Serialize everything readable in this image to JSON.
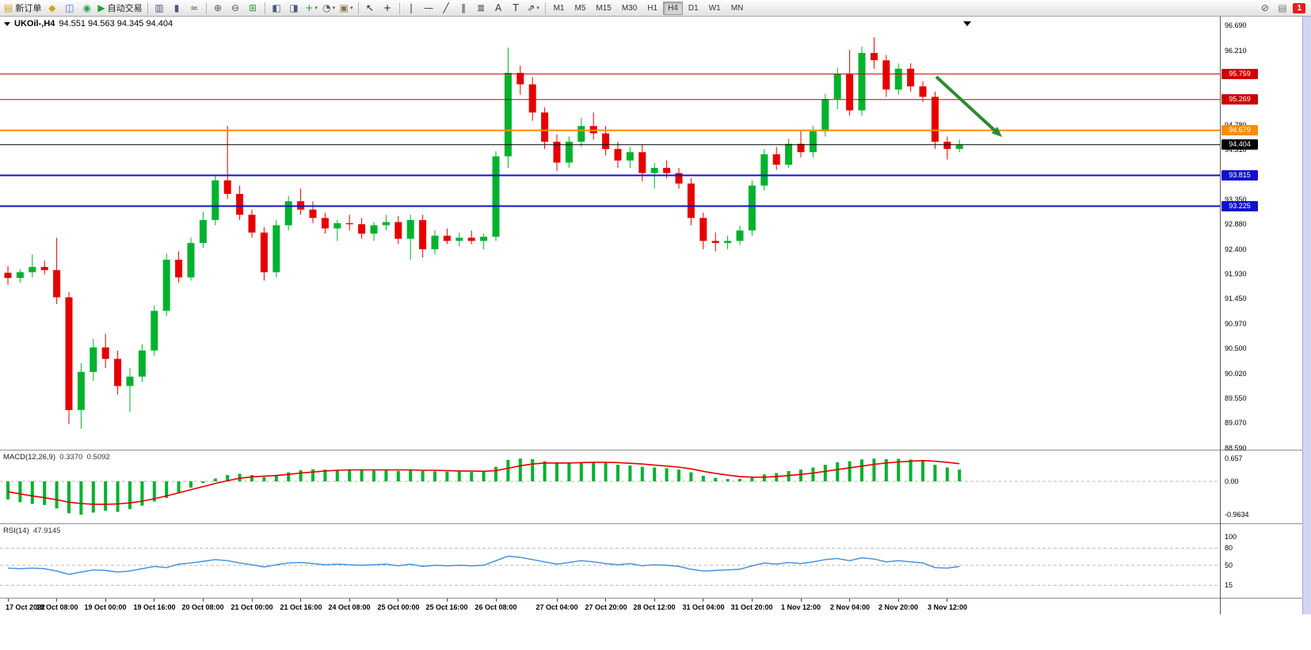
{
  "toolbar": {
    "timeframes": {
      "options": [
        "M1",
        "M5",
        "M15",
        "M30",
        "H1",
        "H4",
        "D1",
        "W1",
        "MN"
      ],
      "active": "H4"
    },
    "items": [
      {
        "type": "button",
        "name": "new-order-button",
        "glyph": "▤",
        "glyph_color": "#caa328",
        "label": "新订单"
      },
      {
        "type": "button",
        "name": "alerts-button",
        "glyph": "◆",
        "glyph_color": "#d7a021"
      },
      {
        "type": "button",
        "name": "market-watch-button",
        "glyph": "◫",
        "glyph_color": "#3e6fd0"
      },
      {
        "type": "button",
        "name": "community-button",
        "glyph": "◉",
        "glyph_color": "#31a24c"
      },
      {
        "type": "button",
        "name": "autotrading-button",
        "glyph": "▶",
        "glyph_color": "#1fa32a",
        "label": "自动交易"
      },
      {
        "type": "separator"
      },
      {
        "type": "button",
        "name": "bar-chart-button",
        "glyph": "▥",
        "glyph_color": "#4a5a80"
      },
      {
        "type": "button",
        "name": "candlestick-chart-button",
        "glyph": "▮",
        "glyph_color": "#4a5a80"
      },
      {
        "type": "button",
        "name": "line-chart-button",
        "glyph": "≈",
        "glyph_color": "#4a5a80"
      },
      {
        "type": "separator"
      },
      {
        "type": "button",
        "name": "zoom-in-button",
        "glyph": "⊕",
        "glyph_color": "#555555"
      },
      {
        "type": "button",
        "name": "zoom-out-button",
        "glyph": "⊖",
        "glyph_color": "#555555"
      },
      {
        "type": "button",
        "name": "tile-windows-button",
        "glyph": "⊞",
        "glyph_color": "#2f9e38"
      },
      {
        "type": "separator"
      },
      {
        "type": "button",
        "name": "auto-scroll-button",
        "glyph": "◧",
        "glyph_color": "#4a5a80"
      },
      {
        "type": "button",
        "name": "chart-shift-button",
        "glyph": "◨",
        "glyph_color": "#4a5a80"
      },
      {
        "type": "button",
        "name": "indicators-button",
        "glyph": "+",
        "glyph_color": "#1fa32a",
        "dropdown": true
      },
      {
        "type": "button",
        "name": "periods-button",
        "glyph": "◔",
        "glyph_color": "#555555",
        "dropdown": true
      },
      {
        "type": "button",
        "name": "templates-button",
        "glyph": "▣",
        "glyph_color": "#8a7a4a",
        "dropdown": true
      },
      {
        "type": "separator"
      },
      {
        "type": "button",
        "name": "cursor-button",
        "glyph": "↖",
        "glyph_color": "#222222"
      },
      {
        "type": "button",
        "name": "crosshair-button",
        "glyph": "+",
        "glyph_color": "#222222"
      },
      {
        "type": "separator"
      },
      {
        "type": "button",
        "name": "vertical-line-button",
        "glyph": "|",
        "glyph_color": "#333333"
      },
      {
        "type": "button",
        "name": "horizontal-line-button",
        "glyph": "—",
        "glyph_color": "#333333"
      },
      {
        "type": "button",
        "name": "trendline-button",
        "glyph": "╱",
        "glyph_color": "#333333"
      },
      {
        "type": "button",
        "name": "channel-button",
        "glyph": "∥",
        "glyph_color": "#333333"
      },
      {
        "type": "button",
        "name": "fibonacci-button",
        "glyph": "≣",
        "glyph_color": "#333333"
      },
      {
        "type": "button",
        "name": "text-button",
        "glyph": "A",
        "glyph_color": "#333333"
      },
      {
        "type": "button",
        "name": "text-label-button",
        "glyph": "T",
        "glyph_color": "#333333"
      },
      {
        "type": "button",
        "name": "arrows-button",
        "glyph": "⇗",
        "glyph_color": "#333333",
        "dropdown": true
      },
      {
        "type": "separator"
      },
      {
        "type": "timeframes"
      },
      {
        "type": "spacer"
      },
      {
        "type": "button",
        "name": "search-button",
        "glyph": "⊘",
        "glyph_color": "#555555"
      },
      {
        "type": "button",
        "name": "news-button",
        "glyph": "▤",
        "glyph_color": "#777777"
      },
      {
        "type": "badge",
        "name": "notification-badge",
        "label": "1"
      }
    ]
  },
  "chart_header": {
    "symbol_period": "UKOil-,H4",
    "ohlc": "94.551 94.563 94.345 94.404"
  },
  "indicators": {
    "macd": {
      "label": "MACD(12,26,9)",
      "value_main": "0.3370",
      "value_signal": "0.5092"
    },
    "rsi": {
      "label": "RSI(14)",
      "value": "47.9145"
    }
  },
  "chart_data": {
    "type": "candlestick",
    "symbol": "UKOil-",
    "timeframe": "H4",
    "bull_color": "#00b22d",
    "bear_color": "#e60000",
    "arrow_color": "#2e8b2e",
    "price_axis": {
      "max": 96.69,
      "min": 88.59,
      "labels": [
        {
          "label": "96.690",
          "price": 96.69
        },
        {
          "label": "96.210",
          "price": 96.21
        },
        {
          "label": "94.780",
          "price": 94.78
        },
        {
          "label": "94.310",
          "price": 94.31
        },
        {
          "label": "93.350",
          "price": 93.35
        },
        {
          "label": "92.880",
          "price": 92.88
        },
        {
          "label": "92.400",
          "price": 92.4
        },
        {
          "label": "91.930",
          "price": 91.93
        },
        {
          "label": "91.450",
          "price": 91.45
        },
        {
          "label": "90.970",
          "price": 90.97
        },
        {
          "label": "90.500",
          "price": 90.5
        },
        {
          "label": "90.020",
          "price": 90.02
        },
        {
          "label": "89.550",
          "price": 89.55
        },
        {
          "label": "89.070",
          "price": 89.07
        },
        {
          "label": "88.590",
          "price": 88.59
        }
      ]
    },
    "levels": [
      {
        "price": 95.759,
        "label": "95.759",
        "color": "#cc0000",
        "width": 1
      },
      {
        "price": 95.269,
        "label": "95.269",
        "color": "#cc0000",
        "width": 1
      },
      {
        "price": 94.679,
        "label": "94.679",
        "color": "#ff8c00",
        "width": 2
      },
      {
        "price": 94.404,
        "label": "94.404",
        "color": "#000000",
        "width": 1
      },
      {
        "price": 93.815,
        "label": "93.815",
        "color": "#1010d0",
        "width": 2
      },
      {
        "price": 93.225,
        "label": "93.225",
        "color": "#1010d0",
        "width": 2
      }
    ],
    "candles": [
      [
        91.95,
        92.08,
        91.72,
        91.85
      ],
      [
        91.85,
        92.02,
        91.76,
        91.96
      ],
      [
        91.96,
        92.3,
        91.86,
        92.06
      ],
      [
        92.06,
        92.18,
        91.92,
        92.0
      ],
      [
        92.0,
        92.62,
        91.35,
        91.48
      ],
      [
        91.48,
        91.58,
        89.05,
        89.32
      ],
      [
        89.32,
        90.22,
        88.96,
        90.05
      ],
      [
        90.05,
        90.68,
        89.88,
        90.52
      ],
      [
        90.52,
        90.78,
        90.12,
        90.3
      ],
      [
        90.3,
        90.46,
        89.62,
        89.78
      ],
      [
        89.78,
        90.12,
        89.28,
        89.96
      ],
      [
        89.96,
        90.58,
        89.86,
        90.46
      ],
      [
        90.46,
        91.32,
        90.36,
        91.22
      ],
      [
        91.22,
        92.32,
        91.12,
        92.2
      ],
      [
        92.2,
        92.36,
        91.76,
        91.86
      ],
      [
        91.86,
        92.62,
        91.8,
        92.52
      ],
      [
        92.52,
        93.12,
        92.42,
        92.96
      ],
      [
        92.96,
        93.82,
        92.86,
        93.72
      ],
      [
        93.72,
        94.76,
        93.36,
        93.46
      ],
      [
        93.46,
        93.62,
        92.96,
        93.06
      ],
      [
        93.06,
        93.16,
        92.62,
        92.72
      ],
      [
        92.72,
        92.82,
        91.8,
        91.96
      ],
      [
        91.96,
        92.96,
        91.86,
        92.86
      ],
      [
        92.86,
        93.42,
        92.76,
        93.32
      ],
      [
        93.32,
        93.56,
        93.06,
        93.16
      ],
      [
        93.16,
        93.32,
        92.9,
        93.0
      ],
      [
        93.0,
        93.1,
        92.7,
        92.8
      ],
      [
        92.8,
        92.96,
        92.56,
        92.9
      ],
      [
        92.9,
        93.06,
        92.76,
        92.88
      ],
      [
        92.88,
        93.0,
        92.6,
        92.7
      ],
      [
        92.7,
        92.92,
        92.56,
        92.86
      ],
      [
        92.86,
        93.06,
        92.76,
        92.92
      ],
      [
        92.92,
        93.04,
        92.5,
        92.6
      ],
      [
        92.6,
        93.06,
        92.2,
        92.96
      ],
      [
        92.96,
        93.06,
        92.24,
        92.4
      ],
      [
        92.4,
        92.76,
        92.3,
        92.66
      ],
      [
        92.66,
        92.8,
        92.5,
        92.56
      ],
      [
        92.56,
        92.72,
        92.46,
        92.62
      ],
      [
        92.62,
        92.76,
        92.5,
        92.56
      ],
      [
        92.56,
        92.7,
        92.4,
        92.64
      ],
      [
        92.64,
        94.28,
        92.56,
        94.18
      ],
      [
        94.18,
        96.26,
        93.96,
        95.78
      ],
      [
        95.78,
        95.92,
        95.36,
        95.56
      ],
      [
        95.56,
        95.7,
        94.86,
        95.02
      ],
      [
        95.02,
        95.12,
        94.32,
        94.46
      ],
      [
        94.46,
        94.6,
        93.9,
        94.06
      ],
      [
        94.06,
        94.56,
        93.96,
        94.46
      ],
      [
        94.46,
        94.92,
        94.36,
        94.76
      ],
      [
        94.76,
        95.02,
        94.5,
        94.62
      ],
      [
        94.62,
        94.76,
        94.2,
        94.32
      ],
      [
        94.32,
        94.46,
        93.96,
        94.1
      ],
      [
        94.1,
        94.36,
        93.96,
        94.26
      ],
      [
        94.26,
        94.4,
        93.7,
        93.86
      ],
      [
        93.86,
        94.06,
        93.56,
        93.96
      ],
      [
        93.96,
        94.1,
        93.76,
        93.86
      ],
      [
        93.86,
        93.96,
        93.56,
        93.66
      ],
      [
        93.66,
        93.76,
        92.86,
        93.0
      ],
      [
        93.0,
        93.1,
        92.4,
        92.56
      ],
      [
        92.56,
        92.72,
        92.36,
        92.52
      ],
      [
        92.52,
        92.66,
        92.4,
        92.56
      ],
      [
        92.56,
        92.86,
        92.48,
        92.76
      ],
      [
        92.76,
        93.72,
        92.66,
        93.62
      ],
      [
        93.62,
        94.32,
        93.52,
        94.22
      ],
      [
        94.22,
        94.36,
        93.92,
        94.02
      ],
      [
        94.02,
        94.52,
        93.96,
        94.42
      ],
      [
        94.42,
        94.66,
        94.16,
        94.26
      ],
      [
        94.26,
        94.76,
        94.16,
        94.66
      ],
      [
        94.66,
        95.38,
        94.56,
        95.28
      ],
      [
        95.28,
        95.88,
        95.08,
        95.76
      ],
      [
        95.76,
        96.22,
        94.96,
        95.06
      ],
      [
        95.06,
        96.28,
        94.96,
        96.16
      ],
      [
        96.16,
        96.46,
        95.86,
        96.02
      ],
      [
        96.02,
        96.12,
        95.32,
        95.46
      ],
      [
        95.46,
        95.96,
        95.36,
        95.86
      ],
      [
        95.86,
        95.96,
        95.42,
        95.52
      ],
      [
        95.52,
        95.62,
        95.22,
        95.32
      ],
      [
        95.32,
        95.42,
        94.32,
        94.46
      ],
      [
        94.46,
        94.56,
        94.12,
        94.32
      ],
      [
        94.32,
        94.5,
        94.26,
        94.404
      ]
    ],
    "time_ticks": [
      {
        "index": 0,
        "label": "17 Oct 2022"
      },
      {
        "index": 4,
        "label": "18 Oct 08:00"
      },
      {
        "index": 8,
        "label": "19 Oct 00:00"
      },
      {
        "index": 12,
        "label": "19 Oct 16:00"
      },
      {
        "index": 16,
        "label": "20 Oct 08:00"
      },
      {
        "index": 20,
        "label": "21 Oct 00:00"
      },
      {
        "index": 24,
        "label": "21 Oct 16:00"
      },
      {
        "index": 28,
        "label": "24 Oct 08:00"
      },
      {
        "index": 32,
        "label": "25 Oct 00:00"
      },
      {
        "index": 36,
        "label": "25 Oct 16:00"
      },
      {
        "index": 40,
        "label": "26 Oct 08:00"
      },
      {
        "index": 45,
        "label": "27 Oct 04:00"
      },
      {
        "index": 49,
        "label": "27 Oct 20:00"
      },
      {
        "index": 53,
        "label": "28 Oct 12:00"
      },
      {
        "index": 57,
        "label": "31 Oct 04:00"
      },
      {
        "index": 61,
        "label": "31 Oct 20:00"
      },
      {
        "index": 65,
        "label": "1 Nov 12:00"
      },
      {
        "index": 69,
        "label": "2 Nov 04:00"
      },
      {
        "index": 73,
        "label": "2 Nov 20:00"
      },
      {
        "index": 77,
        "label": "3 Nov 12:00"
      }
    ],
    "macd": {
      "histogram_color": "#00b22d",
      "signal_color": "#e60000",
      "axis": [
        {
          "label": "0.657",
          "value": 0.657
        },
        {
          "label": "0.00",
          "value": 0
        },
        {
          "label": "-0.9634",
          "value": -0.9634
        }
      ],
      "histogram": [
        -0.52,
        -0.6,
        -0.65,
        -0.68,
        -0.78,
        -0.92,
        -0.96,
        -0.9,
        -0.85,
        -0.88,
        -0.8,
        -0.7,
        -0.58,
        -0.48,
        -0.32,
        -0.18,
        -0.05,
        0.08,
        0.18,
        0.22,
        0.18,
        0.12,
        0.18,
        0.26,
        0.32,
        0.35,
        0.34,
        0.33,
        0.33,
        0.32,
        0.31,
        0.32,
        0.3,
        0.33,
        0.3,
        0.29,
        0.28,
        0.28,
        0.27,
        0.28,
        0.42,
        0.62,
        0.657,
        0.64,
        0.58,
        0.52,
        0.52,
        0.55,
        0.56,
        0.53,
        0.48,
        0.46,
        0.42,
        0.4,
        0.38,
        0.34,
        0.26,
        0.16,
        0.1,
        0.07,
        0.07,
        0.12,
        0.2,
        0.24,
        0.3,
        0.34,
        0.4,
        0.48,
        0.55,
        0.58,
        0.63,
        0.657,
        0.64,
        0.65,
        0.63,
        0.6,
        0.48,
        0.4,
        0.337
      ],
      "signal": [
        -0.3,
        -0.36,
        -0.42,
        -0.47,
        -0.53,
        -0.6,
        -0.64,
        -0.66,
        -0.66,
        -0.65,
        -0.62,
        -0.57,
        -0.5,
        -0.42,
        -0.33,
        -0.24,
        -0.15,
        -0.06,
        0.02,
        0.09,
        0.13,
        0.15,
        0.17,
        0.2,
        0.24,
        0.27,
        0.3,
        0.32,
        0.33,
        0.33,
        0.33,
        0.33,
        0.33,
        0.33,
        0.32,
        0.32,
        0.31,
        0.3,
        0.3,
        0.29,
        0.31,
        0.38,
        0.45,
        0.5,
        0.53,
        0.53,
        0.53,
        0.54,
        0.55,
        0.55,
        0.54,
        0.52,
        0.5,
        0.47,
        0.44,
        0.41,
        0.36,
        0.29,
        0.23,
        0.18,
        0.14,
        0.12,
        0.12,
        0.14,
        0.17,
        0.2,
        0.24,
        0.29,
        0.34,
        0.39,
        0.44,
        0.49,
        0.53,
        0.56,
        0.58,
        0.6,
        0.58,
        0.55,
        0.509
      ]
    },
    "rsi": {
      "line_color": "#3b8ede",
      "levels": [
        80,
        50,
        15
      ],
      "axis": [
        {
          "label": "100",
          "value": 100
        },
        {
          "label": "80",
          "value": 80
        },
        {
          "label": "50",
          "value": 50
        },
        {
          "label": "15",
          "value": 15
        }
      ],
      "values": [
        45,
        44,
        45,
        44,
        40,
        34,
        38,
        42,
        41,
        38,
        40,
        44,
        48,
        46,
        52,
        54,
        57,
        60,
        58,
        54,
        51,
        47,
        51,
        54,
        55,
        53,
        51,
        52,
        51,
        50,
        51,
        52,
        49,
        52,
        48,
        50,
        49,
        50,
        49,
        50,
        58,
        66,
        64,
        60,
        56,
        52,
        55,
        58,
        56,
        53,
        51,
        53,
        49,
        51,
        50,
        48,
        43,
        40,
        41,
        42,
        43,
        49,
        54,
        52,
        55,
        53,
        56,
        60,
        62,
        58,
        63,
        61,
        56,
        58,
        56,
        54,
        46,
        45,
        47.9
      ]
    }
  }
}
